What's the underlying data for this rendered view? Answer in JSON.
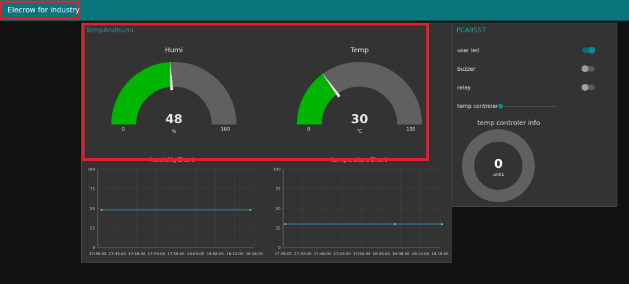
{
  "header": {
    "title": "Elecrow for industry",
    "menu_icon": "hamburger-icon",
    "bar_color": "#097479"
  },
  "tempandhumi": {
    "title": "TempAndHumi",
    "gauges": [
      {
        "label": "Humi",
        "value": "48",
        "unit": "%",
        "min": "0",
        "max": "100",
        "fraction": 0.48,
        "color": "#00b500"
      },
      {
        "label": "Temp",
        "value": "30",
        "unit": "℃",
        "min": "0",
        "max": "100",
        "fraction": 0.3,
        "color": "#00b500"
      }
    ]
  },
  "pca": {
    "title": "PCA9557",
    "switches": [
      {
        "label": "user led",
        "state": "on"
      },
      {
        "label": "buzzer",
        "state": "off"
      },
      {
        "label": "relay",
        "state": "off"
      }
    ],
    "slider": {
      "label": "temp controler",
      "value_fraction": 0.0
    },
    "info": {
      "title": "temp controler info",
      "value": "0",
      "unit": "units"
    }
  },
  "chart_data": [
    {
      "type": "line",
      "title": "humidityChart",
      "x": [
        "17:38:00",
        "17:43:00",
        "17:48:00",
        "17:53:00",
        "17:58:00",
        "18:03:00",
        "18:08:00",
        "18:13:00",
        "18:18:00"
      ],
      "yticks": [
        "100",
        "75",
        "50",
        "25",
        "0"
      ],
      "ylim": [
        0,
        100
      ],
      "series": [
        {
          "points": [
            {
              "t": "17:39:00",
              "y": 48
            },
            {
              "t": "18:17:00",
              "y": 48
            }
          ],
          "color": "#2f6d8e"
        }
      ],
      "grid": true
    },
    {
      "type": "line",
      "title": "temperatureChart",
      "x": [
        "17:38:00",
        "17:43:00",
        "17:48:00",
        "17:53:00",
        "17:58:00",
        "18:03:00",
        "18:08:00",
        "18:13:00",
        "18:18:00"
      ],
      "yticks": [
        "100",
        "75",
        "50",
        "25",
        "0"
      ],
      "ylim": [
        0,
        100
      ],
      "series": [
        {
          "points": [
            {
              "t": "17:38:30",
              "y": 30
            },
            {
              "t": "18:06:30",
              "y": 30
            },
            {
              "t": "18:18:30",
              "y": 30
            }
          ],
          "color": "#2f6d8e"
        }
      ],
      "grid": true
    }
  ]
}
